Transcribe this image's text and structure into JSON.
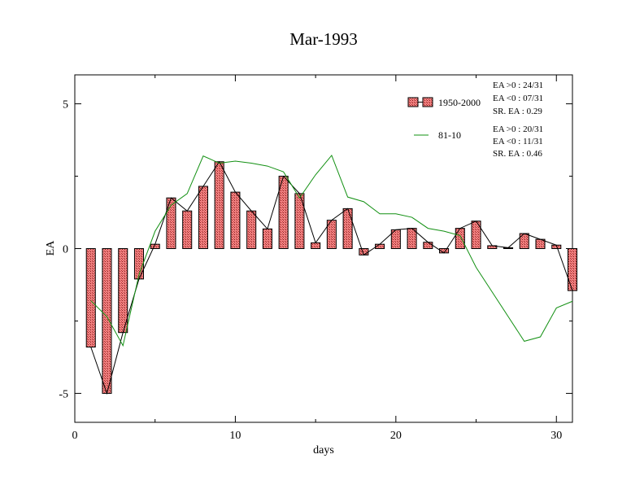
{
  "chart_data": {
    "type": "bar",
    "title": "Mar-1993",
    "xlabel": "days",
    "ylabel": "EA",
    "xlim": [
      0,
      31
    ],
    "ylim": [
      -6,
      6
    ],
    "x_ticks": [
      0,
      10,
      20,
      30
    ],
    "y_ticks": [
      -5,
      0,
      5
    ],
    "grid": false,
    "legend_position": "top-right",
    "series": [
      {
        "name": "1950-2000",
        "kind": "bar+line",
        "color": "#e87878",
        "line_color": "#000000",
        "x": [
          1,
          2,
          3,
          4,
          5,
          6,
          7,
          8,
          9,
          10,
          11,
          12,
          13,
          14,
          15,
          16,
          17,
          18,
          19,
          20,
          21,
          22,
          23,
          24,
          25,
          26,
          27,
          28,
          29,
          30,
          31
        ],
        "values": [
          -3.4,
          -5.0,
          -2.9,
          -1.05,
          0.15,
          1.75,
          1.3,
          2.15,
          3.0,
          1.95,
          1.3,
          0.68,
          2.5,
          1.9,
          0.2,
          0.98,
          1.38,
          -0.22,
          0.15,
          0.65,
          0.7,
          0.22,
          -0.15,
          0.7,
          0.95,
          0.1,
          0.03,
          0.52,
          0.32,
          0.12,
          -1.45
        ]
      },
      {
        "name": "81-10",
        "kind": "line",
        "color": "#129012",
        "x": [
          1,
          2,
          3,
          4,
          5,
          6,
          7,
          8,
          9,
          10,
          11,
          12,
          13,
          14,
          15,
          16,
          17,
          18,
          19,
          20,
          21,
          22,
          23,
          24,
          25,
          26,
          27,
          28,
          29,
          30,
          31
        ],
        "values": [
          -1.8,
          -2.35,
          -3.35,
          -0.9,
          0.6,
          1.5,
          1.9,
          3.2,
          2.95,
          3.02,
          2.95,
          2.85,
          2.65,
          1.75,
          2.55,
          3.22,
          1.78,
          1.62,
          1.2,
          1.2,
          1.08,
          0.7,
          0.6,
          0.45,
          -0.65,
          -1.5,
          -2.35,
          -3.2,
          -3.05,
          -2.05,
          -1.82
        ]
      }
    ],
    "annotations": {
      "block1": [
        "EA >0 : 24/31",
        "EA <0 : 07/31",
        "SR. EA :  0.29"
      ],
      "block2": [
        "EA >0 : 20/31",
        "EA <0 : 11/31",
        "SR. EA :  0.46"
      ]
    }
  }
}
